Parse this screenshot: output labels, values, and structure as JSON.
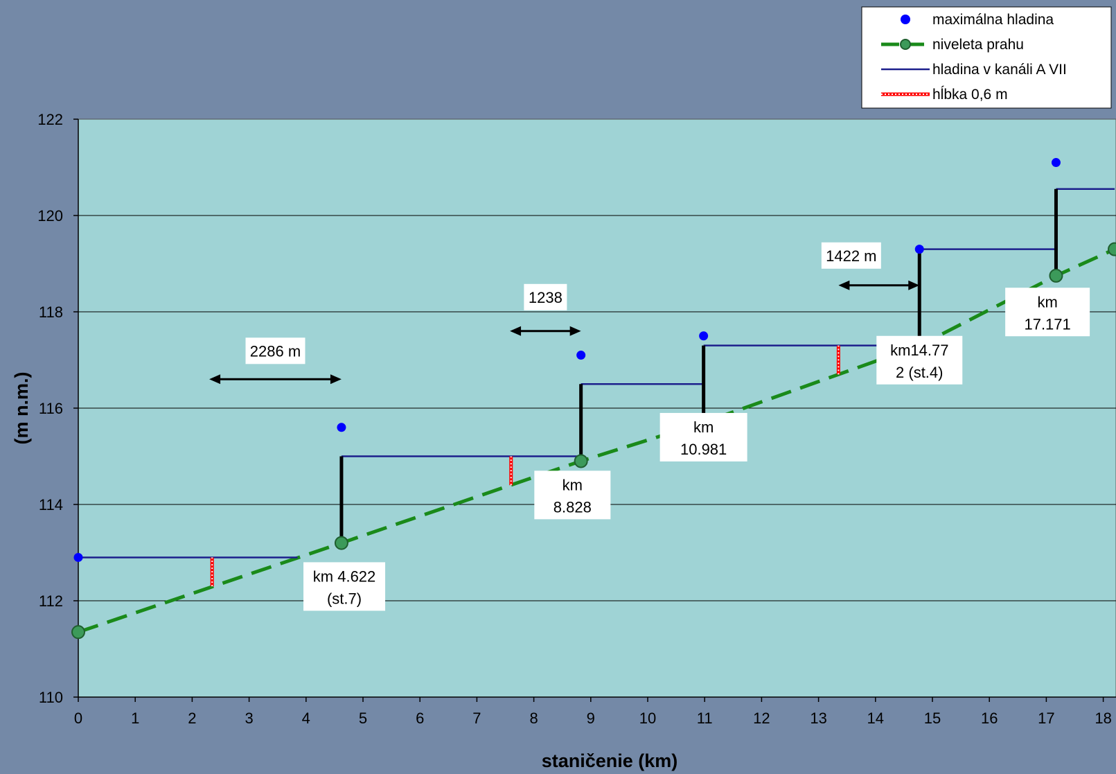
{
  "chart_data": {
    "type": "line",
    "xlabel": "staničenie (km)",
    "ylabel": "(m n.m.)",
    "xlim": [
      0,
      18.2
    ],
    "ylim": [
      110,
      122
    ],
    "x_ticks": [
      0,
      1,
      2,
      3,
      4,
      5,
      6,
      7,
      8,
      9,
      10,
      11,
      12,
      13,
      14,
      15,
      16,
      17,
      18
    ],
    "y_ticks": [
      110,
      112,
      114,
      116,
      118,
      120,
      122
    ],
    "grid": "horizontal",
    "legend_position": "top-right",
    "legend": [
      {
        "label": "maximálna hladina",
        "style": "dot"
      },
      {
        "label": "niveleta prahu",
        "style": "dashed-marker"
      },
      {
        "label": "hladina v kanáli A VII",
        "style": "line"
      },
      {
        "label": "hĺbka 0,6 m",
        "style": "red-dotted"
      }
    ],
    "series": [
      {
        "name": "maximálna hladina",
        "type": "scatter",
        "color": "#0000ff",
        "points": [
          [
            0,
            112.9
          ],
          [
            4.622,
            115.6
          ],
          [
            8.828,
            117.1
          ],
          [
            10.981,
            117.5
          ],
          [
            14.772,
            119.3
          ],
          [
            17.171,
            121.1
          ]
        ]
      },
      {
        "name": "niveleta prahu",
        "type": "line",
        "style": "dashed",
        "color": "#1a8a1a",
        "marker_color": "#3c9a5a",
        "points": [
          [
            0,
            111.35
          ],
          [
            4.622,
            113.2
          ],
          [
            8.828,
            114.9
          ],
          [
            10.981,
            115.7
          ],
          [
            14.772,
            117.3
          ],
          [
            17.171,
            118.75
          ],
          [
            18.2,
            119.3
          ]
        ]
      },
      {
        "name": "hladina v kanáli A VII",
        "type": "step",
        "color": "#1c1f8c",
        "segments": [
          [
            [
              0,
              112.9
            ],
            [
              3.85,
              112.9
            ]
          ],
          [
            [
              4.622,
              115.0
            ],
            [
              8.828,
              115.0
            ]
          ],
          [
            [
              8.828,
              116.5
            ],
            [
              10.981,
              116.5
            ]
          ],
          [
            [
              10.981,
              117.3
            ],
            [
              14.772,
              117.3
            ]
          ],
          [
            [
              14.772,
              119.3
            ],
            [
              17.171,
              119.3
            ]
          ],
          [
            [
              17.171,
              120.55
            ],
            [
              18.2,
              120.55
            ]
          ]
        ]
      },
      {
        "name": "hĺbka 0,6 m",
        "type": "segments",
        "color": "#ff0000",
        "segments": [
          [
            [
              2.35,
              112.3
            ],
            [
              2.35,
              112.9
            ]
          ],
          [
            [
              7.6,
              114.4
            ],
            [
              7.6,
              115.0
            ]
          ],
          [
            [
              13.35,
              116.7
            ],
            [
              13.35,
              117.3
            ]
          ]
        ]
      }
    ],
    "black_verticals": [
      [
        4.622,
        113.2,
        115.0
      ],
      [
        8.828,
        114.9,
        116.5
      ],
      [
        10.981,
        115.7,
        117.3
      ],
      [
        14.772,
        117.3,
        119.3
      ],
      [
        17.171,
        118.75,
        120.55
      ]
    ],
    "arrows": [
      {
        "label": "2286 m",
        "x1": 2.3,
        "x2": 4.622,
        "y": 116.6
      },
      {
        "label": "1238",
        "x1": 7.58,
        "x2": 8.828,
        "y": 117.6
      },
      {
        "label": "1422 m",
        "x1": 13.35,
        "x2": 14.772,
        "y": 118.55
      }
    ],
    "annotations": [
      {
        "lines": [
          "km 4.622",
          "(st.7)"
        ]
      },
      {
        "lines": [
          "km",
          "8.828"
        ]
      },
      {
        "lines": [
          "km",
          "10.981"
        ]
      },
      {
        "lines": [
          "km14.77",
          "2 (st.4)"
        ]
      },
      {
        "lines": [
          "km",
          "17.171"
        ]
      }
    ]
  },
  "colors": {
    "background": "#7489a7",
    "plot_area": "#9fd3d5",
    "grid": "#000000"
  }
}
